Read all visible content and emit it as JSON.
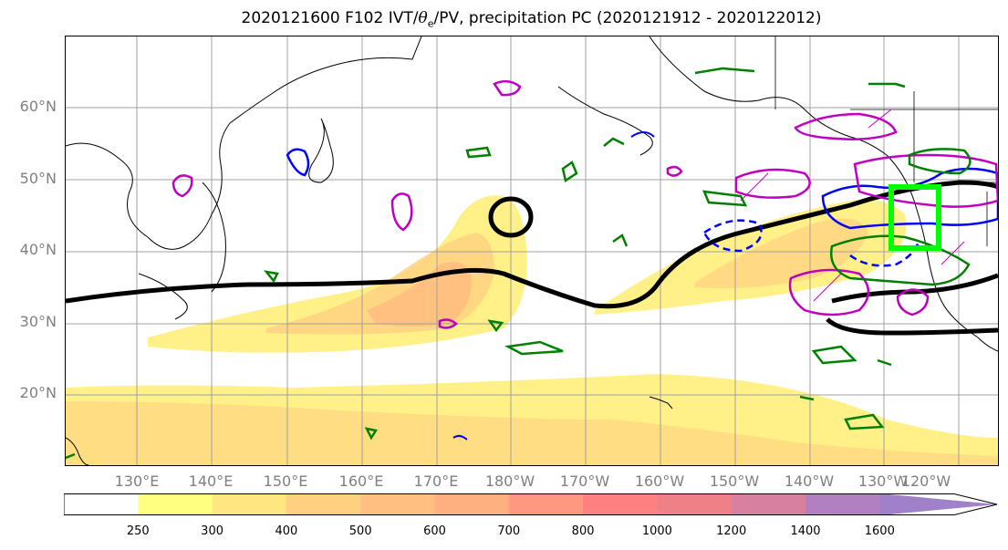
{
  "title": {
    "prefix": "2020121600 F102 IVT/",
    "theta": "θ",
    "theta_sub": "e",
    "suffix": "/PV, precipitation PC (2020121912 - 2020122012)"
  },
  "map": {
    "lat_labels": [
      "60°N",
      "50°N",
      "40°N",
      "30°N",
      "20°N"
    ],
    "lon_labels": [
      "130°E",
      "140°E",
      "150°E",
      "160°E",
      "170°E",
      "180°W",
      "170°W",
      "160°W",
      "150°W",
      "140°W",
      "130°W",
      "120°W"
    ],
    "target_box_color": "#00ff00",
    "contour_colors": {
      "pv": "#000000",
      "theta_e": "#0000ff",
      "precip_neg": "#008000",
      "precip_pos": "#c000c0"
    }
  },
  "colorbar": {
    "ticks": [
      "250",
      "300",
      "400",
      "500",
      "600",
      "700",
      "800",
      "1000",
      "1200",
      "1400",
      "1600"
    ],
    "colors": [
      "#ffffff",
      "#ffff80",
      "#ffe680",
      "#ffd080",
      "#ffbf80",
      "#ffb080",
      "#ff9880",
      "#ff8080",
      "#f08088",
      "#d880a0",
      "#b080c0",
      "#a080c8"
    ]
  }
}
